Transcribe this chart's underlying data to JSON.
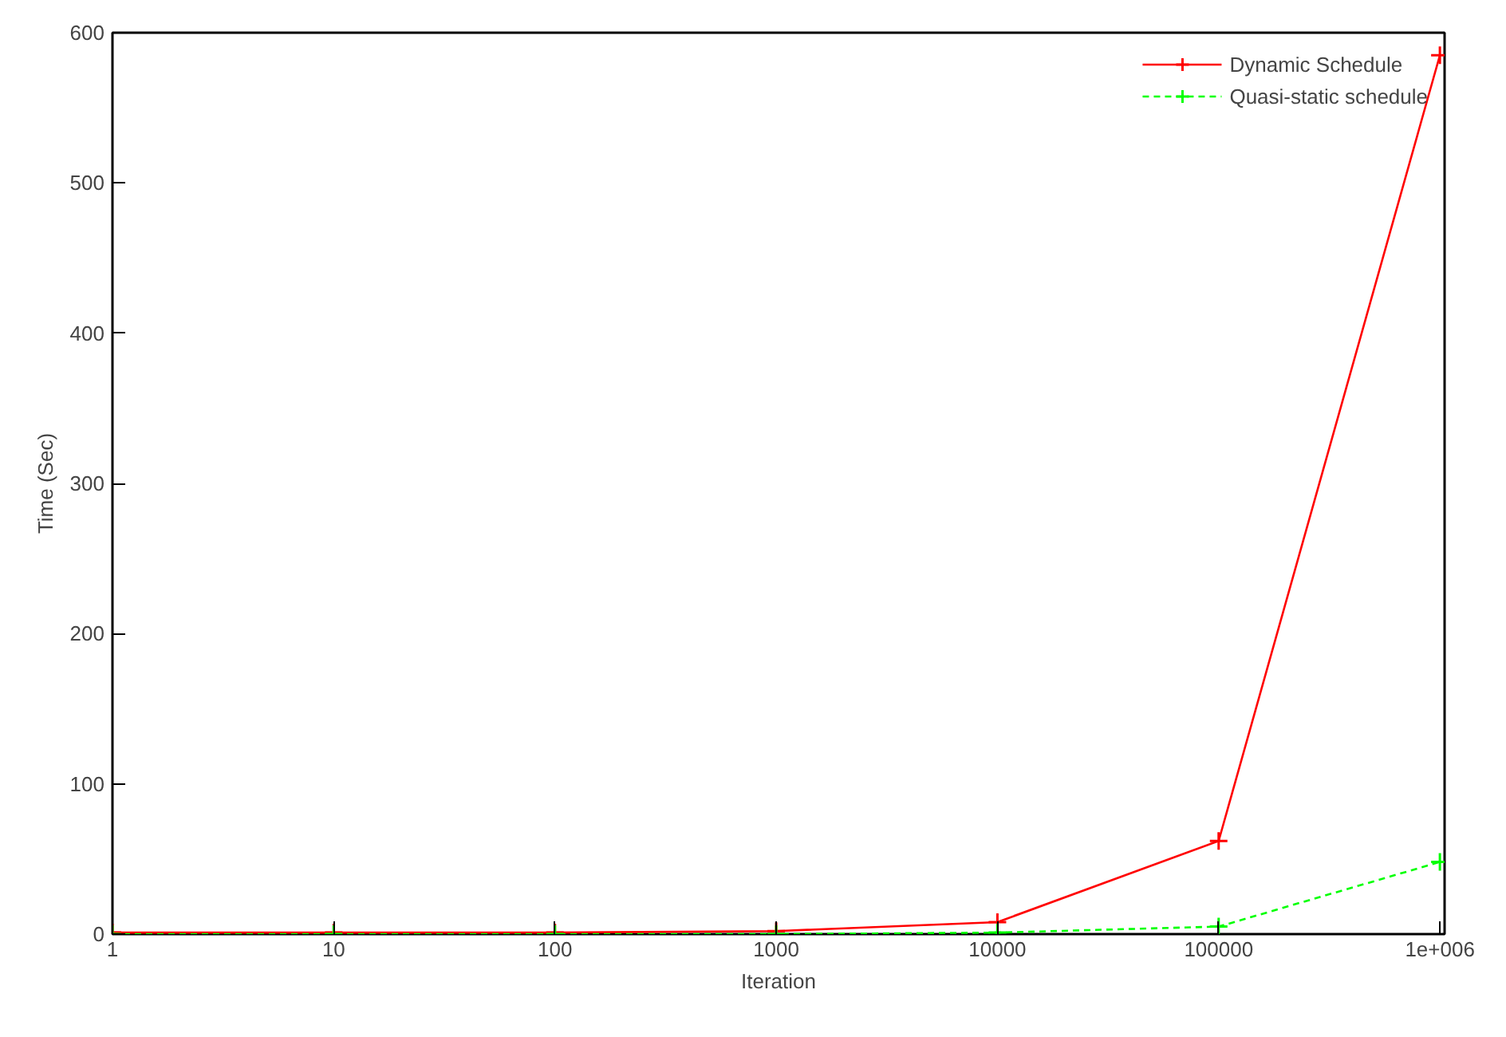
{
  "chart_data": {
    "type": "line",
    "xlabel": "Iteration",
    "ylabel": "Time (Sec)",
    "log": "x",
    "x": [
      1,
      10,
      100,
      1000,
      10000,
      100000,
      1000000
    ],
    "series": [
      {
        "name": "Dynamic Schedule",
        "color": "#ff0000",
        "values": [
          1,
          1,
          1,
          2,
          8,
          62,
          585
        ],
        "marker": "cross",
        "line_style": "solid"
      },
      {
        "name": "Quasi-static schedule",
        "color": "#00ff00",
        "values": [
          0,
          0,
          0,
          0,
          1,
          5,
          48
        ],
        "marker": "cross",
        "line_style": "dashed"
      }
    ],
    "xlim": [
      1,
      1050000
    ],
    "ylim": [
      0,
      600
    ],
    "xticks": [
      1,
      10,
      100,
      1000,
      10000,
      100000,
      {
        "value": 1000000,
        "label": "1e+006"
      }
    ],
    "yticks": [
      0,
      100,
      200,
      300,
      400,
      500,
      600
    ],
    "grid": false,
    "legend": "top right"
  }
}
